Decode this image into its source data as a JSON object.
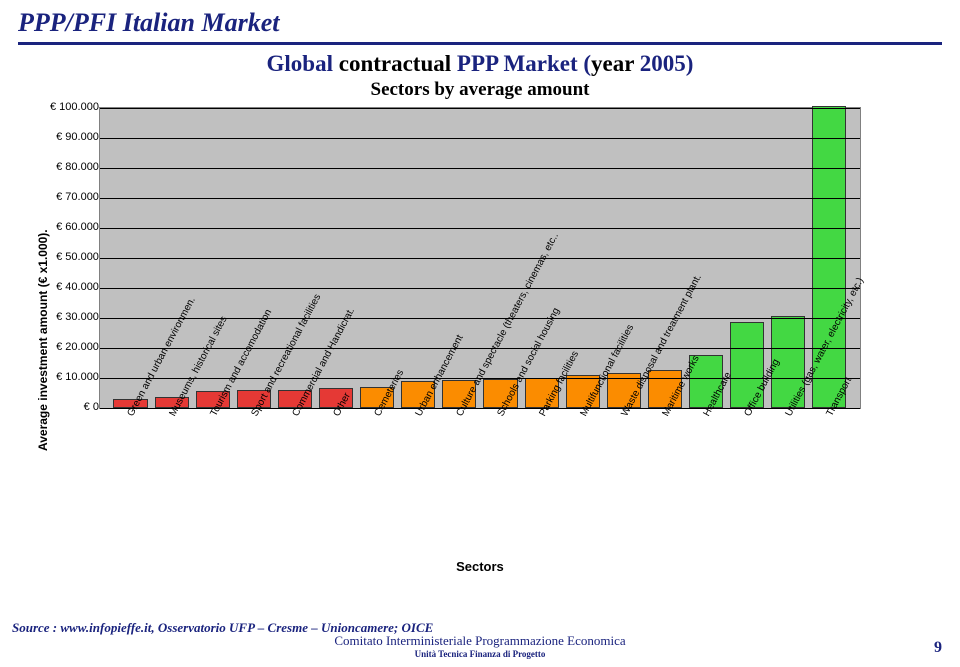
{
  "header": {
    "title_main": "PPP/PFI Italian Market",
    "subtitle_line1_parts": [
      {
        "text": "Global ",
        "color": "#1a237e"
      },
      {
        "text": "contractual",
        "color": "#000"
      },
      {
        "text": " PPP Market (",
        "color": "#1a237e"
      },
      {
        "text": "year",
        "color": "#000"
      },
      {
        "text": " 2005)",
        "color": "#1a237e"
      }
    ],
    "subtitle_line2": "Sectors by average amount"
  },
  "chart": {
    "type": "bar",
    "y_axis_label": "Average investment amount (€ x1.000).",
    "x_axis_label": "Sectors",
    "background_color": "#c0c0c0",
    "grid_color": "#000000",
    "ylim": [
      0,
      100000
    ],
    "ytick_step": 10000,
    "yticks": [
      "€ 100.000",
      "€ 90.000",
      "€ 80.000",
      "€ 70.000",
      "€ 60.000",
      "€ 50.000",
      "€ 40.000",
      "€ 30.000",
      "€ 20.000",
      "€ 10.000",
      "€ 0"
    ],
    "colors": {
      "red": "#e53935",
      "orange": "#fb8c00",
      "green": "#43d843"
    },
    "bars": [
      {
        "label": "Green and urban environmen.",
        "value": 2500,
        "color": "red"
      },
      {
        "label": "Museums, historical sites",
        "value": 3000,
        "color": "red"
      },
      {
        "label": "Tourism and accomodation",
        "value": 5000,
        "color": "red"
      },
      {
        "label": "Sport and recreational facilities",
        "value": 5200,
        "color": "red"
      },
      {
        "label": "Commercial and Handicrat.",
        "value": 5500,
        "color": "red"
      },
      {
        "label": "Other",
        "value": 6000,
        "color": "red"
      },
      {
        "label": "Cemeteries",
        "value": 6500,
        "color": "orange"
      },
      {
        "label": "Urban enhancement",
        "value": 8500,
        "color": "orange"
      },
      {
        "label": "Culture and spectacle (theaters, cinemas, etc..",
        "value": 8800,
        "color": "orange"
      },
      {
        "label": "Schools and social housing",
        "value": 9000,
        "color": "orange"
      },
      {
        "label": "Parking facilities",
        "value": 9500,
        "color": "orange"
      },
      {
        "label": "Multifunctional facilities",
        "value": 10500,
        "color": "orange"
      },
      {
        "label": "Waste disposal and treatment plant.",
        "value": 11000,
        "color": "orange"
      },
      {
        "label": "Maritime works",
        "value": 12000,
        "color": "orange"
      },
      {
        "label": "Healthcare",
        "value": 17000,
        "color": "green"
      },
      {
        "label": "Office building",
        "value": 28000,
        "color": "green"
      },
      {
        "label": "Utilities (gas, water, electricity, etc.)",
        "value": 30000,
        "color": "green"
      },
      {
        "label": "Transport",
        "value": 100000,
        "color": "green"
      }
    ]
  },
  "footer": {
    "source": "Source : www.infopieffe.it, Osservatorio UFP – Cresme – Unioncamere; OICE",
    "org_line1": "Comitato Interministeriale Programmazione Economica",
    "org_line2": "Unità Tecnica Finanza di Progetto",
    "page_number": "9"
  }
}
